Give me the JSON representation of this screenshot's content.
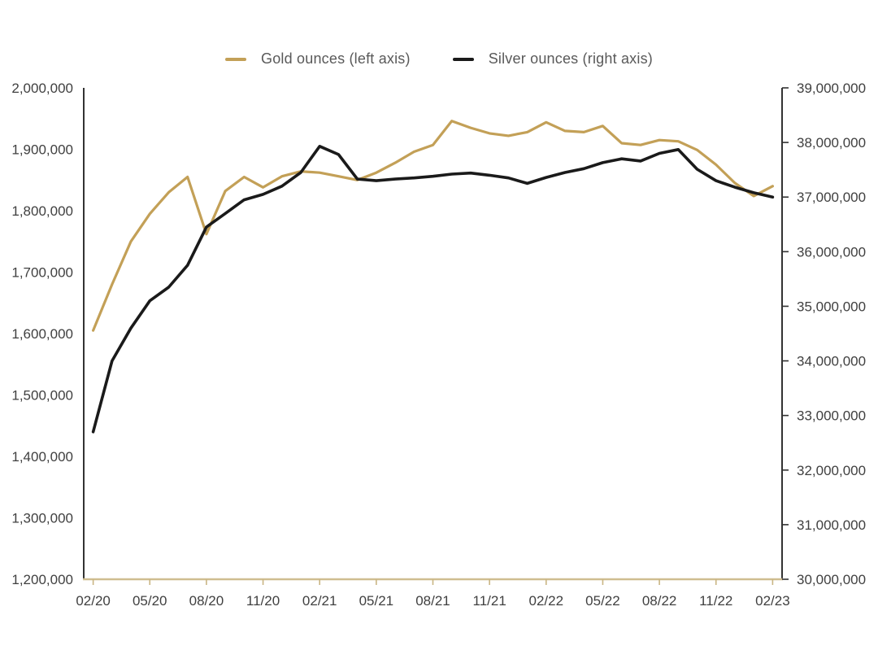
{
  "legend": {
    "items": [
      {
        "label": "Gold ounces (left axis)",
        "color": "#C3A057"
      },
      {
        "label": "Silver ounces (right axis)",
        "color": "#1a1a1a"
      }
    ]
  },
  "chart_data": {
    "type": "line",
    "title": "",
    "xlabel": "",
    "ylabel_left": "",
    "ylabel_right": "",
    "grid": false,
    "legend_position": "top-center",
    "x": [
      "02/20",
      "03/20",
      "04/20",
      "05/20",
      "06/20",
      "07/20",
      "08/20",
      "09/20",
      "10/20",
      "11/20",
      "12/20",
      "01/21",
      "02/21",
      "03/21",
      "04/21",
      "05/21",
      "06/21",
      "07/21",
      "08/21",
      "09/21",
      "10/21",
      "11/21",
      "12/21",
      "01/22",
      "02/22",
      "03/22",
      "04/22",
      "05/22",
      "06/22",
      "07/22",
      "08/22",
      "09/22",
      "10/22",
      "11/22",
      "12/22",
      "01/23",
      "02/23"
    ],
    "x_tick_labels": [
      "02/20",
      "05/20",
      "08/20",
      "11/20",
      "02/21",
      "05/21",
      "08/21",
      "11/21",
      "02/22",
      "05/22",
      "08/22",
      "11/22",
      "02/23"
    ],
    "series": [
      {
        "name": "Gold ounces (left axis)",
        "axis": "left",
        "color": "#C3A057",
        "stroke_width": 3.2,
        "values": [
          1605000,
          1680000,
          1750000,
          1795000,
          1830000,
          1855000,
          1762000,
          1832000,
          1855000,
          1838000,
          1856000,
          1864000,
          1862000,
          1856000,
          1850000,
          1862000,
          1878000,
          1896000,
          1907000,
          1946000,
          1935000,
          1926000,
          1922000,
          1928000,
          1944000,
          1930000,
          1928000,
          1938000,
          1910000,
          1907000,
          1915000,
          1913000,
          1899000,
          1875000,
          1845000,
          1824000,
          1840000
        ]
      },
      {
        "name": "Silver ounces (right axis)",
        "axis": "right",
        "color": "#1a1a1a",
        "stroke_width": 3.6,
        "values": [
          32700000,
          34000000,
          34600000,
          35100000,
          35350000,
          35750000,
          36450000,
          36700000,
          36950000,
          37050000,
          37200000,
          37450000,
          37930000,
          37780000,
          37330000,
          37300000,
          37330000,
          37350000,
          37380000,
          37420000,
          37440000,
          37400000,
          37350000,
          37250000,
          37360000,
          37450000,
          37520000,
          37630000,
          37700000,
          37660000,
          37800000,
          37870000,
          37510000,
          37300000,
          37180000,
          37080000,
          37000000
        ]
      }
    ],
    "left_axis": {
      "min": 1200000,
      "max": 2000000,
      "step": 100000,
      "tick_labels": [
        "2,000,000",
        "1,900,000",
        "1,800,000",
        "1,700,000",
        "1,600,000",
        "1,500,000",
        "1,400,000",
        "1,300,000",
        "1,200,000"
      ]
    },
    "right_axis": {
      "min": 30000000,
      "max": 39000000,
      "step": 1000000,
      "tick_labels": [
        "39,000,000",
        "38,000,000",
        "37,000,000",
        "36,000,000",
        "35,000,000",
        "34,000,000",
        "33,000,000",
        "32,000,000",
        "31,000,000",
        "30,000,000"
      ]
    },
    "style": {
      "y_axis_line_color": "#333333",
      "x_axis_line_color": "#CFBD90",
      "x_tick_color": "#C9B583",
      "axis_label_color": "#404040",
      "axis_font_size": 17
    }
  }
}
